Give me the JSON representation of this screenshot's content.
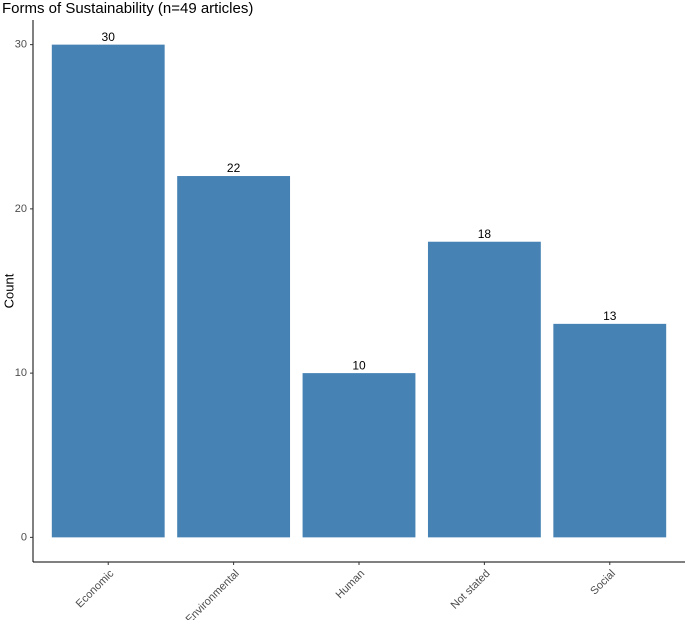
{
  "chart_data": {
    "type": "bar",
    "title": "Forms of Sustainability (n=49 articles)",
    "y_label": "Count",
    "categories": [
      "Economic",
      "Environmental",
      "Human",
      "Not stated",
      "Social"
    ],
    "values": [
      30,
      22,
      10,
      18,
      13
    ],
    "color": "#4682b4",
    "ylim": [
      -1.5,
      31.5
    ],
    "yticks": [
      0,
      10,
      20,
      30
    ],
    "grid": false
  }
}
